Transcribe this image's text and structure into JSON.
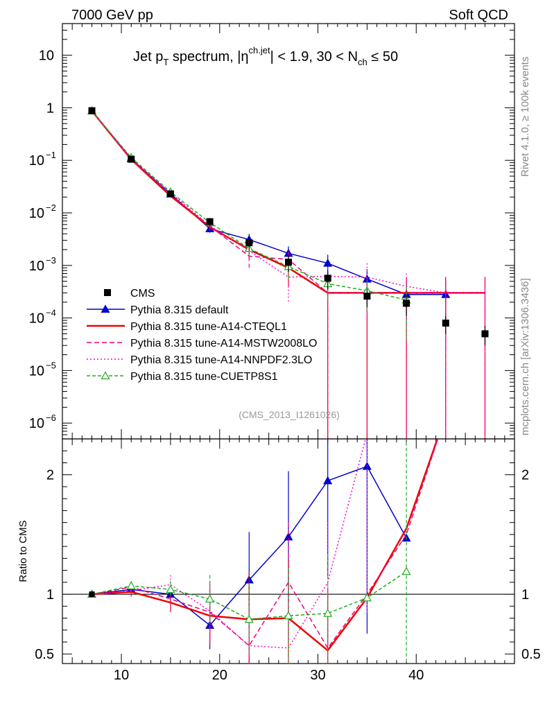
{
  "header": {
    "left": "7000 GeV pp",
    "right": "Soft QCD"
  },
  "side_labels": {
    "right_top": "Rivet 4.1.0, ≥ 100k events",
    "right_bottom": "mcplots.cern.ch [arXiv:1306.3436]"
  },
  "analysis_id": "(CMS_2013_I1261026)",
  "chart_data": {
    "type": "line",
    "title": {
      "part1": "Jet p",
      "sub1": "T",
      "part2": " spectrum, |η",
      "sup1": "ch.jet",
      "part3": "| < 1.9, 30 < N",
      "sub2": "ch",
      "part4": " ≤ 50"
    },
    "xlabel": "",
    "xlim": [
      4,
      50
    ],
    "x_ticks": [
      10,
      20,
      30,
      40
    ],
    "main_panel": {
      "yscale": "log",
      "ylim": [
        5e-07,
        40
      ],
      "y_ticks": [
        {
          "value": 10,
          "label": "10"
        },
        {
          "value": 1,
          "label": "1"
        },
        {
          "value": 0.1,
          "label": "10",
          "exp": "−1"
        },
        {
          "value": 0.01,
          "label": "10",
          "exp": "−2"
        },
        {
          "value": 0.001,
          "label": "10",
          "exp": "−3"
        },
        {
          "value": 0.0001,
          "label": "10",
          "exp": "−4"
        },
        {
          "value": 1e-05,
          "label": "10",
          "exp": "−5"
        },
        {
          "value": 1e-06,
          "label": "10",
          "exp": "−6"
        }
      ]
    },
    "ratio_panel": {
      "ylabel": "Ratio to CMS",
      "ylim": [
        0.42,
        2.3
      ],
      "y_ticks": [
        {
          "value": 0.5,
          "label": "0.5"
        },
        {
          "value": 1,
          "label": "1"
        },
        {
          "value": 2,
          "label": "2"
        }
      ]
    },
    "x": [
      7,
      11,
      15,
      19,
      23,
      27,
      31,
      35,
      39,
      43,
      47
    ],
    "data": {
      "name": "CMS",
      "color": "#000000",
      "values": [
        0.88,
        0.105,
        0.023,
        0.0068,
        0.0027,
        0.00115,
        0.00057,
        0.00026,
        0.00019,
        8e-05,
        5e-05
      ],
      "y_err": [
        0.03,
        0.004,
        0.002,
        0.0012,
        0.0008,
        0.0004,
        0.00022,
        0.0001,
        8e-05,
        3e-05,
        2e-05
      ]
    },
    "series": [
      {
        "name": "Pythia 8.315 default",
        "color": "#0000cc",
        "dash": "",
        "marker": "triangle-filled",
        "values": [
          0.87,
          0.107,
          0.023,
          0.005,
          0.0031,
          0.0017,
          0.0011,
          0.00055,
          0.00028,
          0.00028,
          null
        ],
        "y_err": [
          0.01,
          0.003,
          0.001,
          0.0008,
          0.0009,
          0.0006,
          0.0005,
          0.0003,
          0.0002,
          0.0002,
          null
        ],
        "ratio": [
          1.0,
          1.04,
          1.0,
          0.74,
          1.12,
          1.48,
          1.95,
          2.07,
          1.47,
          null,
          null
        ],
        "ratio_err": [
          0.02,
          0.04,
          0.06,
          0.2,
          0.4,
          0.55,
          0.8,
          1.4,
          null,
          null,
          null
        ]
      },
      {
        "name": "Pythia 8.315 tune-A14-CTEQL1",
        "color": "#ee0000",
        "dash": "",
        "marker": "none",
        "values": [
          0.87,
          0.104,
          0.021,
          0.0054,
          0.002,
          0.0009,
          0.0003,
          0.0003,
          0.0003,
          0.0003,
          0.0003
        ],
        "y_err": [
          0.01,
          0.003,
          0.001,
          0.0008,
          0.0007,
          0.0005,
          0.0003,
          0.0003,
          0.0003,
          0.0003,
          0.0003
        ],
        "ratio": [
          1.0,
          1.02,
          0.93,
          0.82,
          0.79,
          0.8,
          0.53,
          0.97,
          1.55,
          2.5,
          null
        ],
        "ratio_err": [
          0.02,
          0.04,
          0.08,
          0.25,
          0.4,
          0.5,
          0.5,
          null,
          null,
          null,
          null
        ]
      },
      {
        "name": "Pythia 8.315 tune-A14-MSTW2008LO",
        "color": "#ee0077",
        "dash": "7,4",
        "marker": "none",
        "values": [
          0.88,
          0.108,
          0.022,
          0.0056,
          0.0015,
          0.0013,
          0.0003,
          0.0003,
          0.0003,
          0.0003,
          0.0003
        ],
        "y_err": [
          0.01,
          0.003,
          0.001,
          0.0008,
          0.0006,
          0.0005,
          0.0003,
          0.0003,
          0.0003,
          0.0003,
          0.0003
        ],
        "ratio": [
          1.0,
          1.06,
          0.96,
          0.85,
          0.57,
          1.1,
          0.55,
          1.0,
          1.5,
          2.5,
          null
        ],
        "ratio_err": [
          0.02,
          0.04,
          0.08,
          0.25,
          0.3,
          0.5,
          0.5,
          null,
          null,
          null,
          null
        ]
      },
      {
        "name": "Pythia 8.315 tune-A14-NNPDF2.3LO",
        "color": "#ff00cc",
        "dash": "2,3",
        "marker": "none",
        "values": [
          0.88,
          0.105,
          0.024,
          0.0057,
          0.0019,
          0.0006,
          0.00062,
          0.0006,
          0.0004,
          0.0003,
          0.0003
        ],
        "y_err": [
          0.01,
          0.003,
          0.001,
          0.0008,
          0.0006,
          0.0004,
          0.0003,
          0.0005,
          0.0003,
          0.0003,
          0.0003
        ],
        "ratio": [
          1.0,
          1.03,
          1.08,
          0.86,
          0.57,
          0.55,
          1.1,
          2.35,
          2.6,
          null,
          null
        ],
        "ratio_err": [
          0.02,
          0.04,
          0.08,
          0.25,
          0.3,
          0.4,
          0.5,
          1.5,
          null,
          null,
          null
        ]
      },
      {
        "name": "Pythia 8.315 tune-CUETP8S1",
        "color": "#22aa22",
        "dash": "5,3",
        "marker": "triangle-open",
        "values": [
          0.87,
          0.113,
          0.025,
          0.0065,
          0.0021,
          0.00095,
          0.00045,
          0.00033,
          0.00022,
          null,
          null
        ],
        "y_err": [
          0.01,
          0.003,
          0.001,
          0.0008,
          0.0006,
          0.0004,
          0.00025,
          0.0002,
          0.00018,
          null,
          null
        ],
        "ratio": [
          1.0,
          1.07,
          1.04,
          0.96,
          0.79,
          0.82,
          0.84,
          0.97,
          1.19,
          null,
          null
        ],
        "ratio_err": [
          0.02,
          0.04,
          0.07,
          0.2,
          0.3,
          0.4,
          0.5,
          null,
          1.5,
          null,
          null
        ]
      }
    ],
    "legend": {
      "position": "bottom-left",
      "entries": [
        "CMS",
        "Pythia 8.315 default",
        "Pythia 8.315 tune-A14-CTEQL1",
        "Pythia 8.315 tune-A14-MSTW2008LO",
        "Pythia 8.315 tune-A14-NNPDF2.3LO",
        "Pythia 8.315 tune-CUETP8S1"
      ]
    }
  }
}
